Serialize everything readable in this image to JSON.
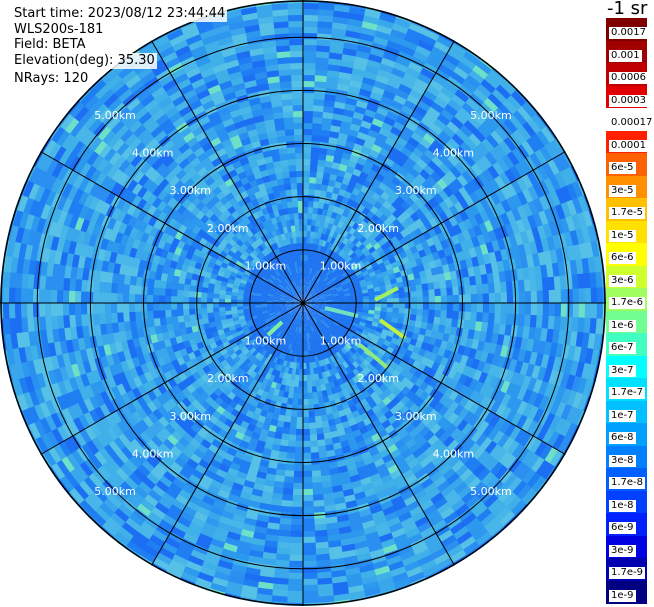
{
  "header": {
    "start_time": "Start time: 2023/08/12 23:44:44",
    "instrument": "WLS200s-181",
    "field": "Field: BETA",
    "elevation": "Elevation(deg): 35.30",
    "nrays": "NRays: 120"
  },
  "unit_title": "-1 sr",
  "range_rings": [
    {
      "km": 1,
      "label": "1.00km"
    },
    {
      "km": 2,
      "label": "2.00km"
    },
    {
      "km": 3,
      "label": "3.00km"
    },
    {
      "km": 4,
      "label": "4.00km"
    },
    {
      "km": 5,
      "label": "5.00km"
    }
  ],
  "max_range_km": 5.7,
  "spoke_count": 12,
  "colorbar": {
    "labels": [
      "0.0017",
      "0.001",
      "0.0006",
      "0.0003",
      "0.00017",
      "0.0001",
      "6e-5",
      "3e-5",
      "1.7e-5",
      "1e-5",
      "6e-6",
      "3e-6",
      "1.7e-6",
      "1e-6",
      "6e-7",
      "3e-7",
      "1.7e-7",
      "1e-7",
      "6e-8",
      "3e-8",
      "1.7e-8",
      "1e-8",
      "6e-9",
      "3e-9",
      "1.7e-9",
      "1e-9"
    ],
    "colors": [
      "#800000",
      "#a00000",
      "#c00000",
      "#e00000",
      "#ffffff",
      "#ff2000",
      "#ff6000",
      "#ff9000",
      "#ffc000",
      "#ffe000",
      "#ffff00",
      "#d0ff30",
      "#a0ff60",
      "#70ff90",
      "#40ffc0",
      "#00ffff",
      "#00e0ff",
      "#00c0ff",
      "#00a0ff",
      "#0080ff",
      "#0060ff",
      "#0040ff",
      "#0020ff",
      "#0000e0",
      "#0000b0",
      "#000080"
    ]
  },
  "colors": {
    "background_field": "#2e9cec",
    "inner_field": "#1e74f0",
    "grid_lines": "#000000"
  }
}
